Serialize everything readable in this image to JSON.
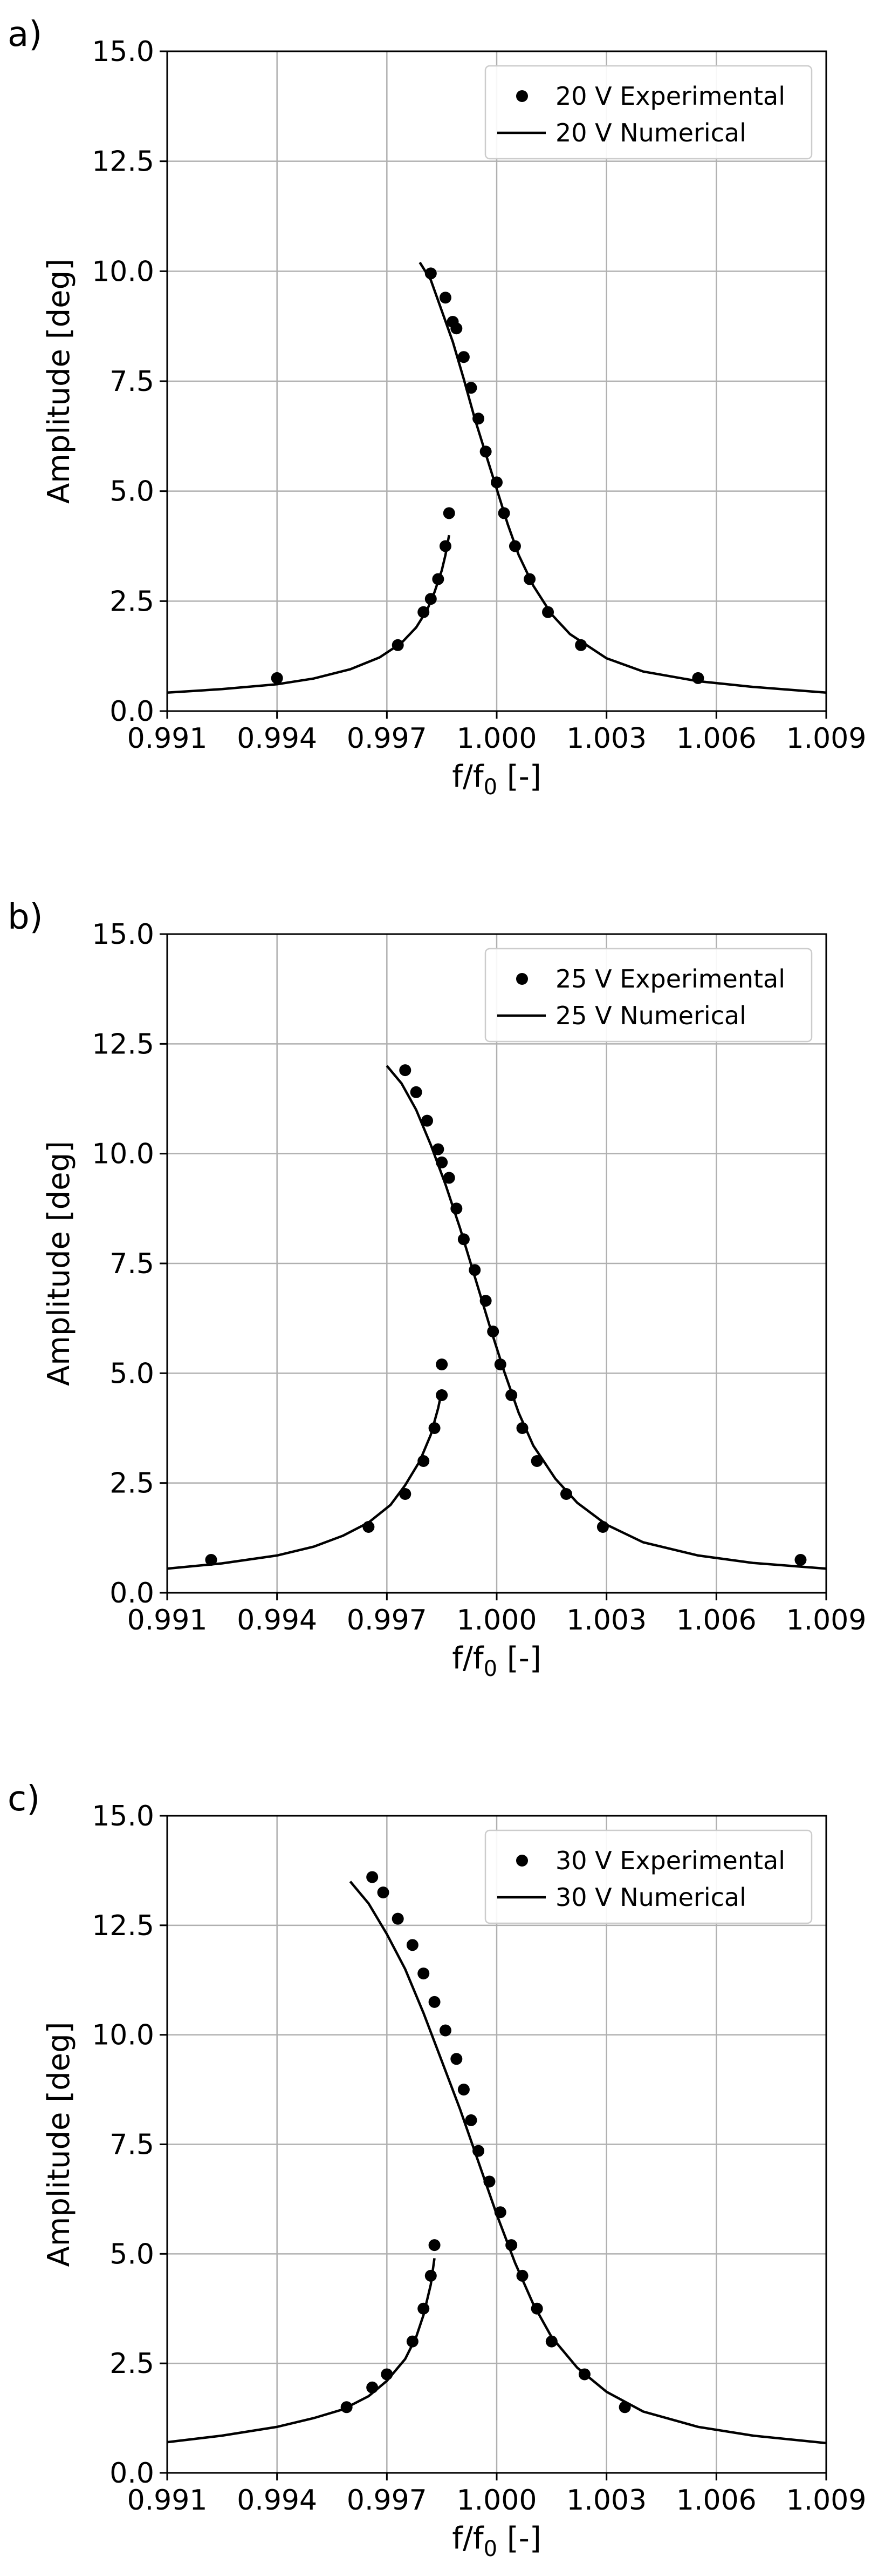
{
  "chart_data": [
    {
      "type": "line",
      "panel_label": "a)",
      "xlabel_main": "f/f",
      "xlabel_sub": "0",
      "xlabel_suffix": " [-]",
      "ylabel": "Amplitude [deg]",
      "xlim": [
        0.991,
        1.009
      ],
      "ylim": [
        0,
        15
      ],
      "xticks": [
        0.991,
        0.994,
        0.997,
        1.0,
        1.003,
        1.006,
        1.009
      ],
      "xtick_labels": [
        "0.991",
        "0.994",
        "0.997",
        "1.000",
        "1.003",
        "1.006",
        "1.009"
      ],
      "yticks": [
        0,
        2.5,
        5,
        7.5,
        10,
        12.5,
        15
      ],
      "ytick_labels": [
        "0.0",
        "2.5",
        "5.0",
        "7.5",
        "10.0",
        "12.5",
        "15.0"
      ],
      "grid": true,
      "legend_position": "top-right",
      "series": [
        {
          "name": "20 V Experimental",
          "kind": "scatter",
          "points": [
            [
              0.994,
              0.75
            ],
            [
              0.9973,
              1.5
            ],
            [
              0.998,
              2.25
            ],
            [
              0.9982,
              2.55
            ],
            [
              0.9984,
              3.0
            ],
            [
              0.9986,
              3.75
            ],
            [
              0.9987,
              4.5
            ],
            [
              0.9982,
              9.95
            ],
            [
              0.9986,
              9.4
            ],
            [
              0.9988,
              8.85
            ],
            [
              0.9989,
              8.7
            ],
            [
              0.9991,
              8.05
            ],
            [
              0.9993,
              7.35
            ],
            [
              0.9995,
              6.65
            ],
            [
              0.9997,
              5.9
            ],
            [
              1.0,
              5.2
            ],
            [
              1.0002,
              4.5
            ],
            [
              1.0005,
              3.75
            ],
            [
              1.0009,
              3.0
            ],
            [
              1.0014,
              2.25
            ],
            [
              1.0023,
              1.5
            ],
            [
              1.0055,
              0.75
            ]
          ]
        },
        {
          "name": "20 V Numerical",
          "kind": "line",
          "segments": [
            [
              [
                0.991,
                0.42
              ],
              [
                0.9925,
                0.5
              ],
              [
                0.994,
                0.61
              ],
              [
                0.995,
                0.74
              ],
              [
                0.996,
                0.95
              ],
              [
                0.9968,
                1.22
              ],
              [
                0.9974,
                1.55
              ],
              [
                0.9978,
                1.9
              ],
              [
                0.9981,
                2.3
              ],
              [
                0.9983,
                2.7
              ],
              [
                0.9985,
                3.2
              ],
              [
                0.9986,
                3.55
              ],
              [
                0.9987,
                4.0
              ]
            ],
            [
              [
                0.9979,
                10.2
              ],
              [
                0.9982,
                9.8
              ],
              [
                0.9985,
                9.1
              ],
              [
                0.9988,
                8.4
              ],
              [
                0.9991,
                7.55
              ],
              [
                0.9994,
                6.65
              ],
              [
                0.9997,
                5.85
              ],
              [
                1.0,
                5.05
              ],
              [
                1.0003,
                4.25
              ],
              [
                1.0006,
                3.55
              ],
              [
                1.001,
                2.85
              ],
              [
                1.0015,
                2.2
              ],
              [
                1.002,
                1.75
              ],
              [
                1.003,
                1.2
              ],
              [
                1.004,
                0.9
              ],
              [
                1.0055,
                0.68
              ],
              [
                1.007,
                0.55
              ],
              [
                1.009,
                0.42
              ]
            ]
          ]
        }
      ]
    },
    {
      "type": "line",
      "panel_label": "b)",
      "xlabel_main": "f/f",
      "xlabel_sub": "0",
      "xlabel_suffix": " [-]",
      "ylabel": "Amplitude [deg]",
      "xlim": [
        0.991,
        1.009
      ],
      "ylim": [
        0,
        15
      ],
      "xticks": [
        0.991,
        0.994,
        0.997,
        1.0,
        1.003,
        1.006,
        1.009
      ],
      "xtick_labels": [
        "0.991",
        "0.994",
        "0.997",
        "1.000",
        "1.003",
        "1.006",
        "1.009"
      ],
      "yticks": [
        0,
        2.5,
        5,
        7.5,
        10,
        12.5,
        15
      ],
      "ytick_labels": [
        "0.0",
        "2.5",
        "5.0",
        "7.5",
        "10.0",
        "12.5",
        "15.0"
      ],
      "grid": true,
      "legend_position": "top-right",
      "series": [
        {
          "name": "25 V Experimental",
          "kind": "scatter",
          "points": [
            [
              0.9922,
              0.75
            ],
            [
              0.9965,
              1.5
            ],
            [
              0.9975,
              2.25
            ],
            [
              0.998,
              3.0
            ],
            [
              0.9983,
              3.75
            ],
            [
              0.9985,
              4.5
            ],
            [
              0.9985,
              5.2
            ],
            [
              0.9975,
              11.9
            ],
            [
              0.9978,
              11.4
            ],
            [
              0.9981,
              10.75
            ],
            [
              0.9984,
              10.1
            ],
            [
              0.9985,
              9.8
            ],
            [
              0.9987,
              9.45
            ],
            [
              0.9989,
              8.75
            ],
            [
              0.9991,
              8.05
            ],
            [
              0.9994,
              7.35
            ],
            [
              0.9997,
              6.65
            ],
            [
              0.9999,
              5.95
            ],
            [
              1.0001,
              5.2
            ],
            [
              1.0004,
              4.5
            ],
            [
              1.0007,
              3.75
            ],
            [
              1.0011,
              3.0
            ],
            [
              1.0019,
              2.25
            ],
            [
              1.0029,
              1.5
            ],
            [
              1.0083,
              0.75
            ]
          ]
        },
        {
          "name": "25 V Numerical",
          "kind": "line",
          "segments": [
            [
              [
                0.991,
                0.55
              ],
              [
                0.9925,
                0.67
              ],
              [
                0.994,
                0.85
              ],
              [
                0.995,
                1.05
              ],
              [
                0.9958,
                1.3
              ],
              [
                0.9965,
                1.6
              ],
              [
                0.9971,
                2.0
              ],
              [
                0.9975,
                2.45
              ],
              [
                0.9979,
                3.0
              ],
              [
                0.9982,
                3.6
              ],
              [
                0.9984,
                4.2
              ],
              [
                0.9985,
                4.6
              ]
            ],
            [
              [
                0.997,
                12.0
              ],
              [
                0.9974,
                11.6
              ],
              [
                0.9978,
                11.0
              ],
              [
                0.9982,
                10.2
              ],
              [
                0.9986,
                9.3
              ],
              [
                0.999,
                8.3
              ],
              [
                0.9994,
                7.2
              ],
              [
                0.9998,
                6.1
              ],
              [
                1.0002,
                5.05
              ],
              [
                1.0006,
                4.1
              ],
              [
                1.001,
                3.35
              ],
              [
                1.0016,
                2.6
              ],
              [
                1.0022,
                2.05
              ],
              [
                1.003,
                1.55
              ],
              [
                1.004,
                1.15
              ],
              [
                1.0055,
                0.85
              ],
              [
                1.007,
                0.68
              ],
              [
                1.009,
                0.55
              ]
            ]
          ]
        }
      ]
    },
    {
      "type": "line",
      "panel_label": "c)",
      "xlabel_main": "f/f",
      "xlabel_sub": "0",
      "xlabel_suffix": " [-]",
      "ylabel": "Amplitude [deg]",
      "xlim": [
        0.991,
        1.009
      ],
      "ylim": [
        0,
        15
      ],
      "xticks": [
        0.991,
        0.994,
        0.997,
        1.0,
        1.003,
        1.006,
        1.009
      ],
      "xtick_labels": [
        "0.991",
        "0.994",
        "0.997",
        "1.000",
        "1.003",
        "1.006",
        "1.009"
      ],
      "yticks": [
        0,
        2.5,
        5,
        7.5,
        10,
        12.5,
        15
      ],
      "ytick_labels": [
        "0.0",
        "2.5",
        "5.0",
        "7.5",
        "10.0",
        "12.5",
        "15.0"
      ],
      "grid": true,
      "legend_position": "top-right",
      "series": [
        {
          "name": "30 V Experimental",
          "kind": "scatter",
          "points": [
            [
              0.9959,
              1.5
            ],
            [
              0.9966,
              1.95
            ],
            [
              0.997,
              2.25
            ],
            [
              0.9977,
              3.0
            ],
            [
              0.998,
              3.75
            ],
            [
              0.9982,
              4.5
            ],
            [
              0.9983,
              5.2
            ],
            [
              0.9966,
              13.6
            ],
            [
              0.9969,
              13.25
            ],
            [
              0.9973,
              12.65
            ],
            [
              0.9977,
              12.05
            ],
            [
              0.998,
              11.4
            ],
            [
              0.9983,
              10.75
            ],
            [
              0.9986,
              10.1
            ],
            [
              0.9989,
              9.45
            ],
            [
              0.9991,
              8.75
            ],
            [
              0.9993,
              8.05
            ],
            [
              0.9995,
              7.35
            ],
            [
              0.9998,
              6.65
            ],
            [
              1.0001,
              5.95
            ],
            [
              1.0004,
              5.2
            ],
            [
              1.0007,
              4.5
            ],
            [
              1.0011,
              3.75
            ],
            [
              1.0015,
              3.0
            ],
            [
              1.0024,
              2.25
            ],
            [
              1.0035,
              1.5
            ]
          ]
        },
        {
          "name": "30 V Numerical",
          "kind": "line",
          "segments": [
            [
              [
                0.991,
                0.7
              ],
              [
                0.9925,
                0.85
              ],
              [
                0.994,
                1.05
              ],
              [
                0.995,
                1.25
              ],
              [
                0.9958,
                1.45
              ],
              [
                0.9965,
                1.75
              ],
              [
                0.997,
                2.1
              ],
              [
                0.9975,
                2.6
              ],
              [
                0.9978,
                3.1
              ],
              [
                0.998,
                3.6
              ],
              [
                0.9982,
                4.3
              ],
              [
                0.9983,
                4.9
              ]
            ],
            [
              [
                0.996,
                13.5
              ],
              [
                0.9965,
                13.0
              ],
              [
                0.997,
                12.3
              ],
              [
                0.9975,
                11.5
              ],
              [
                0.998,
                10.5
              ],
              [
                0.9985,
                9.4
              ],
              [
                0.999,
                8.3
              ],
              [
                0.9995,
                7.1
              ],
              [
                1.0,
                5.9
              ],
              [
                1.0005,
                4.8
              ],
              [
                1.001,
                3.85
              ],
              [
                1.0015,
                3.1
              ],
              [
                1.0022,
                2.4
              ],
              [
                1.003,
                1.85
              ],
              [
                1.004,
                1.4
              ],
              [
                1.0055,
                1.05
              ],
              [
                1.007,
                0.85
              ],
              [
                1.009,
                0.68
              ]
            ]
          ]
        }
      ]
    }
  ]
}
